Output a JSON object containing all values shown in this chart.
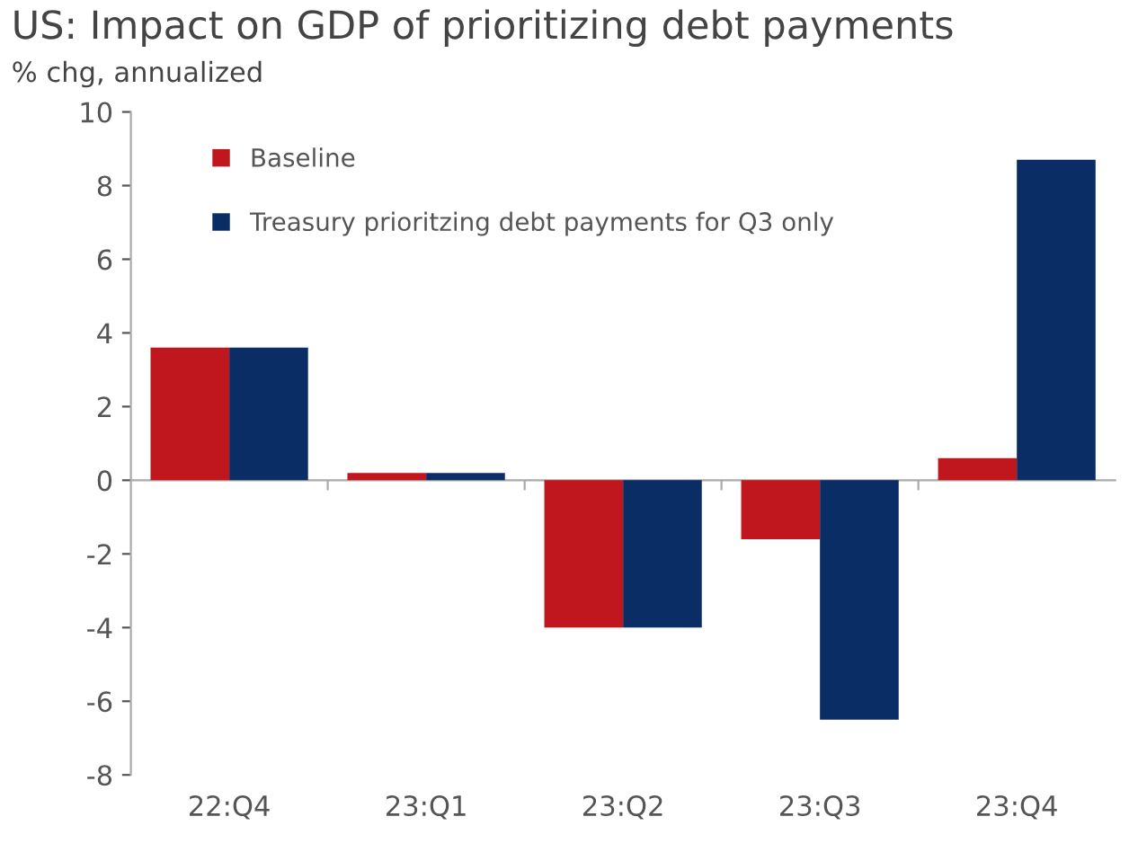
{
  "chart_data": {
    "type": "bar",
    "title": "US: Impact on GDP of prioritizing debt payments",
    "ylabel": "% chg, annualized",
    "categories": [
      "22:Q4",
      "23:Q1",
      "23:Q2",
      "23:Q3",
      "23:Q4"
    ],
    "series": [
      {
        "name": "Baseline",
        "color": "#c0161e",
        "values": [
          3.6,
          0.2,
          -4.0,
          -1.6,
          0.6
        ]
      },
      {
        "name": "Treasury prioritzing debt payments for Q3 only",
        "color": "#0b2d66",
        "values": [
          3.6,
          0.2,
          -4.0,
          -6.5,
          8.7
        ]
      }
    ],
    "ylim": [
      -8,
      10
    ],
    "yticks": [
      -8,
      -6,
      -4,
      -2,
      0,
      2,
      4,
      6,
      8,
      10
    ],
    "legend": "top left"
  }
}
